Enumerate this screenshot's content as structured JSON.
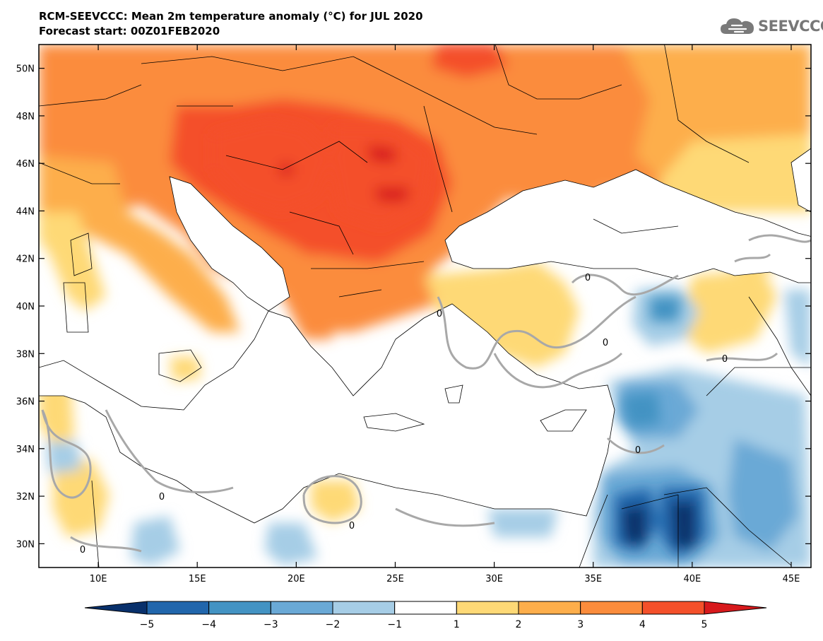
{
  "title": "RCM-SEEVCCC: Mean 2m temperature anomaly (°C) for JUL 2020",
  "subtitle": "Forecast start: 00Z01FEB2020",
  "logo": {
    "text": "SEEVCCC",
    "icon": "cloud-logo-icon"
  },
  "map": {
    "lon_range": [
      7,
      46
    ],
    "lat_range": [
      29,
      51
    ],
    "x_ticks": [
      "10E",
      "15E",
      "20E",
      "25E",
      "30E",
      "35E",
      "40E",
      "45E"
    ],
    "x_tick_values": [
      10,
      15,
      20,
      25,
      30,
      35,
      40,
      45
    ],
    "y_ticks": [
      "50N",
      "48N",
      "46N",
      "44N",
      "42N",
      "40N",
      "38N",
      "36N",
      "34N",
      "32N",
      "30N"
    ],
    "y_tick_values": [
      50,
      48,
      46,
      44,
      42,
      40,
      38,
      36,
      34,
      32,
      30
    ],
    "contour_labels": [
      "0",
      "0",
      "0",
      "0",
      "0",
      "0",
      "0",
      "0"
    ]
  },
  "colorbar": {
    "labels": [
      "−5",
      "−4",
      "−3",
      "−2",
      "−1",
      "1",
      "2",
      "3",
      "4",
      "5"
    ],
    "colors": [
      "#08306b",
      "#2166ac",
      "#4393c3",
      "#6aa9d6",
      "#a6cde6",
      "#ffffff",
      "#fed976",
      "#fdae4b",
      "#fb8c3c",
      "#f4502a",
      "#d7191c"
    ]
  }
}
